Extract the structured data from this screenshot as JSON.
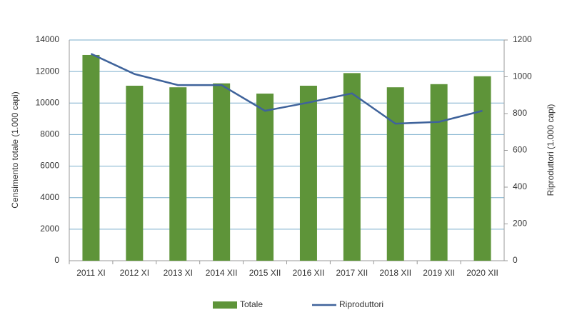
{
  "chart_data": {
    "type": "bar-line",
    "categories": [
      "2011 XI",
      "2012 XI",
      "2013 XI",
      "2014 XII",
      "2015 XII",
      "2016 XII",
      "2017 XII",
      "2018 XII",
      "2019 XII",
      "2020 XII"
    ],
    "series": [
      {
        "name": "Totale",
        "color": "#5e9439",
        "type": "bar",
        "values": [
          13050,
          11100,
          11000,
          11250,
          10600,
          11100,
          11900,
          11000,
          11200,
          11700
        ]
      },
      {
        "name": "Riproduttori",
        "color": "#3f639b",
        "type": "line",
        "axis": "y2",
        "values": [
          1125,
          1015,
          955,
          955,
          815,
          860,
          910,
          745,
          755,
          815
        ]
      }
    ],
    "ylabel": "Censimento totale (1.000 capi)",
    "y2label": "Riproduttori (1.000 capi)",
    "ylim": [
      0,
      14000
    ],
    "yticks": [
      0,
      2000,
      4000,
      6000,
      8000,
      10000,
      12000,
      14000
    ],
    "y2lim": [
      0,
      1200
    ],
    "y2ticks": [
      0,
      200,
      400,
      600,
      800,
      1000,
      1200
    ],
    "grid": true,
    "legend": "bottom"
  }
}
